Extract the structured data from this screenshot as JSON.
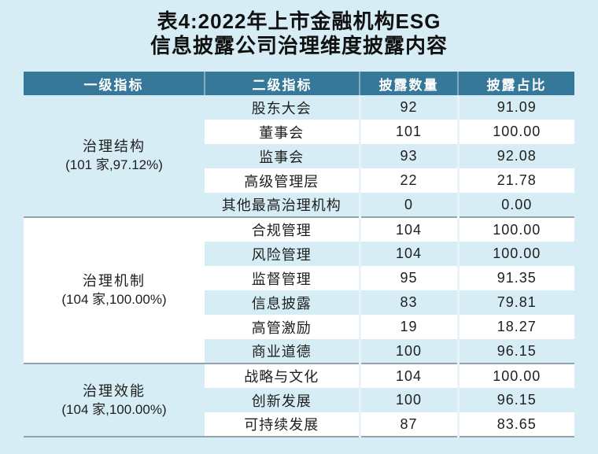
{
  "colors": {
    "page_bg": "#d7edf6",
    "header_bg": "#36789a",
    "header_text": "#ffffff",
    "row_blue": "#d7edf6",
    "row_white": "#ffffff",
    "group_line": "#95a4ac",
    "col_sep": "#e7f3f9",
    "text": "#1e1e1e"
  },
  "title": {
    "line1": "表4:2022年上市金融机构ESG",
    "line2": "信息披露公司治理维度披露内容"
  },
  "table": {
    "headers": [
      "一级指标",
      "二级指标",
      "披露数量",
      "披露占比"
    ],
    "groups": [
      {
        "name": "治理结构",
        "stats": "(101 家,97.12%)",
        "rows": [
          [
            "股东大会",
            "92",
            "91.09"
          ],
          [
            "董事会",
            "101",
            "100.00"
          ],
          [
            "监事会",
            "93",
            "92.08"
          ],
          [
            "高级管理层",
            "22",
            "21.78"
          ],
          [
            "其他最高治理机构",
            "0",
            "0.00"
          ]
        ]
      },
      {
        "name": "治理机制",
        "stats": "(104 家,100.00%)",
        "rows": [
          [
            "合规管理",
            "104",
            "100.00"
          ],
          [
            "风险管理",
            "104",
            "100.00"
          ],
          [
            "监督管理",
            "95",
            "91.35"
          ],
          [
            "信息披露",
            "83",
            "79.81"
          ],
          [
            "高管激励",
            "19",
            "18.27"
          ],
          [
            "商业道德",
            "100",
            "96.15"
          ]
        ]
      },
      {
        "name": "治理效能",
        "stats": "(104 家,100.00%)",
        "rows": [
          [
            "战略与文化",
            "104",
            "100.00"
          ],
          [
            "创新发展",
            "100",
            "96.15"
          ],
          [
            "可持续发展",
            "87",
            "83.65"
          ]
        ]
      }
    ]
  }
}
